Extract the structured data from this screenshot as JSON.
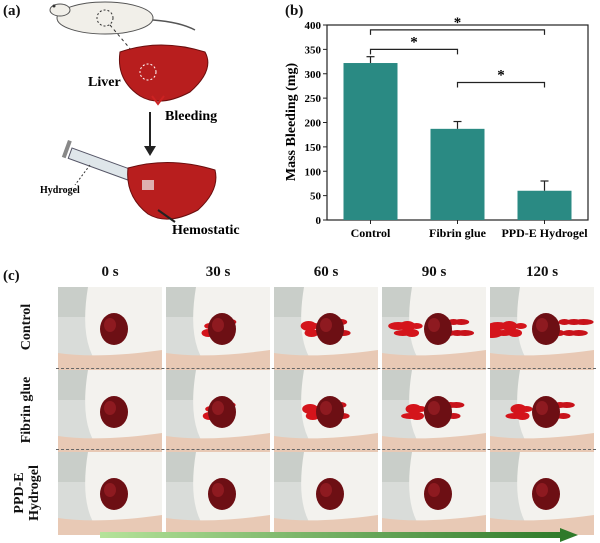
{
  "panels": {
    "a": "(a)",
    "b": "(b)",
    "c": "(c)"
  },
  "schematic": {
    "liver": "Liver",
    "bleeding": "Bleeding",
    "hydrogel": "Hydrogel",
    "hemostatic": "Hemostatic"
  },
  "chart_data": {
    "type": "bar",
    "categories": [
      "Control",
      "Fibrin glue",
      "PPD-E Hydrogel"
    ],
    "values": [
      322,
      187,
      60
    ],
    "errors": [
      13,
      15,
      20
    ],
    "ylabel": "Mass Bleeding (mg)",
    "ylim": [
      0,
      400
    ],
    "yticks": [
      0,
      50,
      100,
      150,
      200,
      250,
      300,
      350,
      400
    ],
    "bar_color": "#2a8a83",
    "significance": [
      {
        "from": 0,
        "to": 1,
        "label": "*"
      },
      {
        "from": 0,
        "to": 2,
        "label": "*"
      },
      {
        "from": 1,
        "to": 2,
        "label": "*"
      }
    ]
  },
  "photos": {
    "times": [
      "0 s",
      "30 s",
      "60 s",
      "90 s",
      "120 s"
    ],
    "rows": [
      {
        "label": "Control",
        "bleed": [
          0.05,
          0.3,
          0.5,
          0.8,
          1.0
        ]
      },
      {
        "label": "Fibrin glue",
        "bleed": [
          0.05,
          0.25,
          0.45,
          0.6,
          0.7
        ]
      },
      {
        "label": "PPD-E Hydrogel",
        "label_lines": [
          "PPD-E",
          "Hydrogel"
        ],
        "bleed": [
          0,
          0,
          0,
          0,
          0
        ]
      }
    ]
  }
}
